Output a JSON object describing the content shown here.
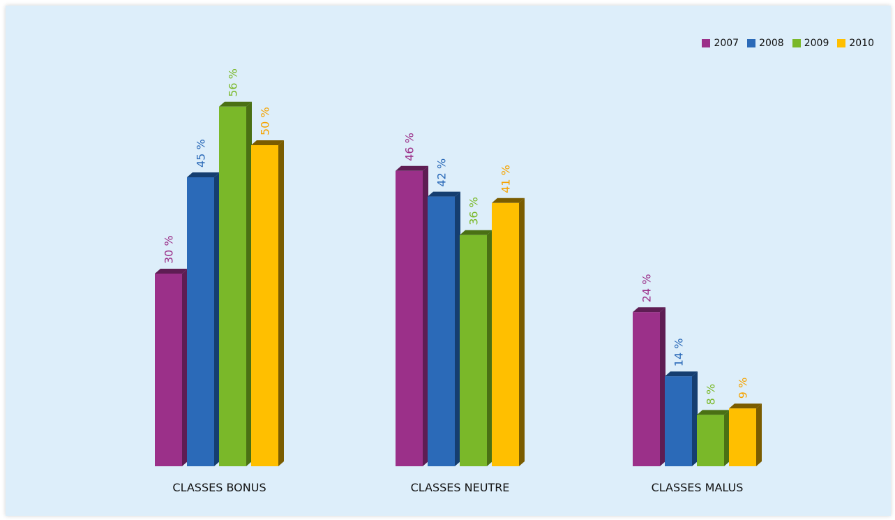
{
  "chart_data": {
    "type": "bar",
    "categories": [
      "CLASSES BONUS",
      "CLASSES NEUTRE",
      "CLASSES MALUS"
    ],
    "series": [
      {
        "name": "2007",
        "values": [
          30,
          46,
          24
        ],
        "labels": [
          "30 %",
          "46 %",
          "24 %"
        ],
        "color": "#9b3089",
        "side": "#5e1d53",
        "label_color": "#9b3089"
      },
      {
        "name": "2008",
        "values": [
          45,
          42,
          14
        ],
        "labels": [
          "45 %",
          "42 %",
          "14 %"
        ],
        "color": "#2b6ab8",
        "side": "#153e70",
        "label_color": "#2b6ab8"
      },
      {
        "name": "2009",
        "values": [
          56,
          36,
          8
        ],
        "labels": [
          "56 %",
          "36 %",
          "8 %"
        ],
        "color": "#7ab829",
        "side": "#4a7014",
        "label_color": "#7ab829"
      },
      {
        "name": "2010",
        "values": [
          50,
          41,
          9
        ],
        "labels": [
          "50 %",
          "41 %",
          "9 %"
        ],
        "color": "#ffbf00",
        "side": "#7a5c00",
        "label_color": "#f5a300"
      }
    ],
    "ylim": [
      0,
      60
    ],
    "grid": false,
    "legend_position": "top-right"
  },
  "colors": {
    "background": "#ddeefa"
  }
}
